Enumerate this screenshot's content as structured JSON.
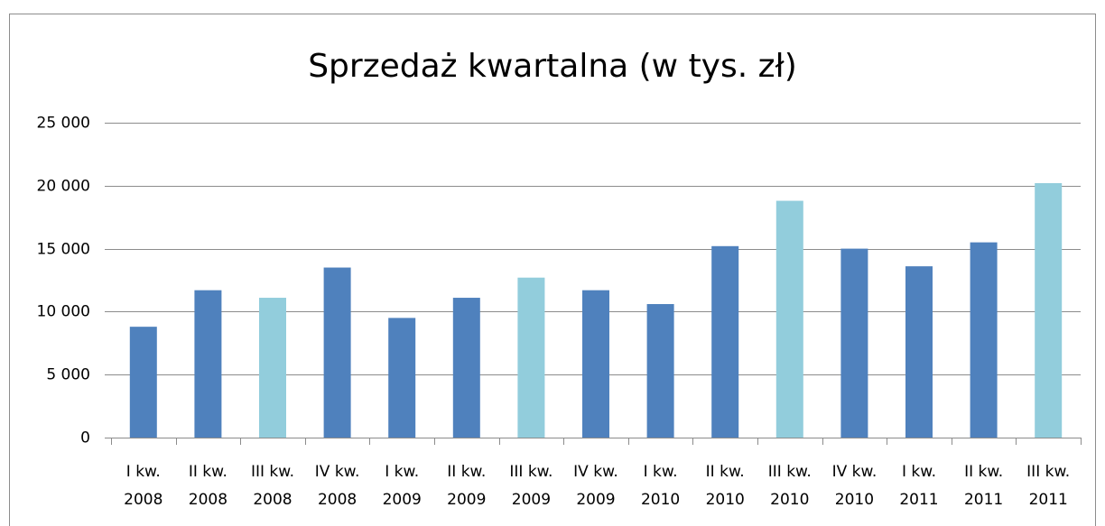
{
  "chart_data": {
    "type": "bar",
    "title": "Sprzedaż kwartalna (w tys. zł)",
    "categories": [
      [
        "I kw.",
        "2008"
      ],
      [
        "II kw.",
        "2008"
      ],
      [
        "III kw.",
        "2008"
      ],
      [
        "IV kw.",
        "2008"
      ],
      [
        "I kw.",
        "2009"
      ],
      [
        "II kw.",
        "2009"
      ],
      [
        "III kw.",
        "2009"
      ],
      [
        "IV kw.",
        "2009"
      ],
      [
        "I kw.",
        "2010"
      ],
      [
        "II kw.",
        "2010"
      ],
      [
        "III kw.",
        "2010"
      ],
      [
        "IV kw.",
        "2010"
      ],
      [
        "I kw.",
        "2011"
      ],
      [
        "II kw.",
        "2011"
      ],
      [
        "III kw.",
        "2011"
      ]
    ],
    "values": [
      8800,
      11700,
      11100,
      13500,
      9500,
      11100,
      12700,
      11700,
      10600,
      15200,
      18800,
      15000,
      13600,
      15500,
      20200
    ],
    "colors": [
      "#4f81bd",
      "#4f81bd",
      "#92cddc",
      "#4f81bd",
      "#4f81bd",
      "#4f81bd",
      "#92cddc",
      "#4f81bd",
      "#4f81bd",
      "#4f81bd",
      "#92cddc",
      "#4f81bd",
      "#4f81bd",
      "#4f81bd",
      "#92cddc"
    ],
    "ylim": [
      0,
      25000
    ],
    "yticks": [
      0,
      {
        "value": 5000,
        "label": "5 000"
      },
      {
        "value": 10000,
        "label": "10 000"
      },
      {
        "value": 15000,
        "label": "15 000"
      },
      {
        "value": 20000,
        "label": "20 000"
      },
      {
        "value": 25000,
        "label": "25 000"
      }
    ],
    "grid": true
  }
}
